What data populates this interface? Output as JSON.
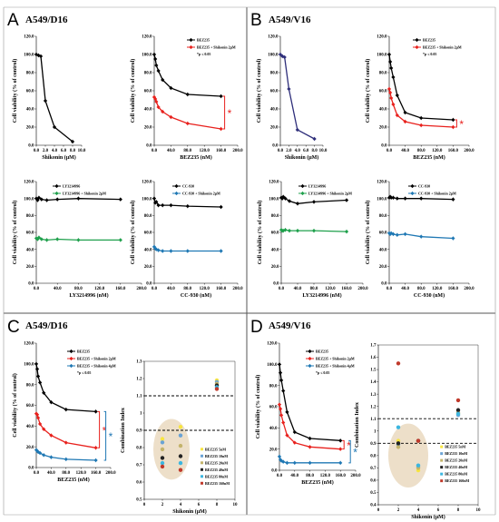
{
  "panels": [
    {
      "id": "A",
      "label": "A",
      "title": "A549/D16"
    },
    {
      "id": "B",
      "label": "B",
      "title": "A549/V16"
    },
    {
      "id": "C",
      "label": "C",
      "title": "A549/D16"
    },
    {
      "id": "D",
      "label": "D",
      "title": "A549/V16"
    }
  ],
  "chart_data": [
    {
      "id": "A1",
      "type": "line",
      "ylabel": "Cell viability (% of control)",
      "xlabel": "Shikonin (μM)",
      "xlim": [
        0,
        10
      ],
      "ylim": [
        0,
        120
      ],
      "xticks": [
        "0.0",
        "2.0",
        "4.0",
        "6.0",
        "8.0",
        "10.0"
      ],
      "yticks": [
        "0.0",
        "20.0",
        "40.0",
        "60.0",
        "80.0",
        "100.0",
        "120.0"
      ],
      "legend": [],
      "note": "",
      "series": [
        {
          "name": "",
          "color": "#000000",
          "x": [
            0,
            0.5,
            1,
            2,
            4,
            8
          ],
          "y": [
            100,
            99,
            98,
            49,
            20,
            4
          ]
        }
      ]
    },
    {
      "id": "A2",
      "type": "line",
      "ylabel": "Cell viability (% of control)",
      "xlabel": "BEZ235 (nM)",
      "xlim": [
        0,
        200
      ],
      "ylim": [
        0,
        120
      ],
      "xticks": [
        "0.0",
        "40.0",
        "80.0",
        "120.0",
        "160.0",
        "200.0"
      ],
      "yticks": [
        "0.0",
        "20.0",
        "40.0",
        "60.0",
        "80.0",
        "100.0",
        "120.0"
      ],
      "note": "*p ≤ 0.05",
      "series": [
        {
          "name": "BEZ235",
          "color": "#000000",
          "x": [
            0,
            2.5,
            5,
            10,
            20,
            40,
            80,
            160
          ],
          "y": [
            100,
            95,
            88,
            82,
            72,
            63,
            56,
            54
          ]
        },
        {
          "name": "BEZ235 + Shikonin 2μM",
          "color": "#e8211d",
          "x": [
            0,
            2.5,
            5,
            10,
            20,
            40,
            80,
            160
          ],
          "y": [
            53,
            51,
            48,
            42,
            37,
            31,
            24,
            18
          ]
        }
      ],
      "brackets": [
        {
          "y1": 54,
          "y2": 18,
          "color": "#e8211d",
          "label": "*"
        }
      ]
    },
    {
      "id": "B1",
      "type": "line",
      "ylabel": "Cell viability (% of control)",
      "xlabel": "Shikonin (μM)",
      "xlim": [
        0,
        10
      ],
      "ylim": [
        0,
        120
      ],
      "xticks": [
        "0.0",
        "2.0",
        "4.0",
        "6.0",
        "8.0",
        "10.0"
      ],
      "yticks": [
        "0.0",
        "20.0",
        "40.0",
        "60.0",
        "80.0",
        "100.0",
        "120.0"
      ],
      "legend": [],
      "note": "",
      "series": [
        {
          "name": "",
          "color": "#2e2e7a",
          "x": [
            0,
            0.5,
            1,
            2,
            4,
            8
          ],
          "y": [
            100,
            98,
            97,
            62,
            17,
            7
          ]
        }
      ]
    },
    {
      "id": "B2",
      "type": "line",
      "ylabel": "Cell viability (% of control)",
      "xlabel": "BEZ235 (nM)",
      "xlim": [
        0,
        200
      ],
      "ylim": [
        0,
        120
      ],
      "xticks": [
        "0.0",
        "40.0",
        "80.0",
        "120.0",
        "160.0",
        "200.0"
      ],
      "yticks": [
        "0.0",
        "20.0",
        "40.0",
        "60.0",
        "80.0",
        "100.0",
        "120.0"
      ],
      "note": "*p ≤ 0.05",
      "series": [
        {
          "name": "BEZ235",
          "color": "#000000",
          "x": [
            0,
            2.5,
            5,
            10,
            20,
            40,
            80,
            160
          ],
          "y": [
            100,
            92,
            85,
            75,
            55,
            36,
            30,
            28
          ]
        },
        {
          "name": "BEZ235 + Shikonin 2μM",
          "color": "#e8211d",
          "x": [
            0,
            2.5,
            5,
            10,
            20,
            40,
            80,
            160
          ],
          "y": [
            62,
            58,
            52,
            45,
            33,
            26,
            22,
            20
          ]
        }
      ],
      "brackets": [
        {
          "y1": 28,
          "y2": 20,
          "color": "#e8211d",
          "label": "*"
        }
      ]
    },
    {
      "id": "A3",
      "type": "line",
      "ylabel": "Cell viability (% of control)",
      "xlabel": "LY3214996 (nM)",
      "xlim": [
        0,
        200
      ],
      "ylim": [
        0,
        120
      ],
      "xticks": [
        "0.0",
        "40.0",
        "80.0",
        "120.0",
        "160.0",
        "200.0"
      ],
      "yticks": [
        "0.0",
        "20.0",
        "40.0",
        "60.0",
        "80.0",
        "100.0",
        "120.0"
      ],
      "note": "",
      "series": [
        {
          "name": "LY3214996",
          "color": "#000000",
          "x": [
            0,
            2.5,
            5,
            10,
            20,
            40,
            80,
            160
          ],
          "y": [
            100,
            98,
            101,
            99,
            98,
            99,
            100,
            99
          ]
        },
        {
          "name": "LY3214996 + Shikonin 2μM",
          "color": "#1fa04c",
          "x": [
            0,
            2.5,
            5,
            10,
            20,
            40,
            80,
            160
          ],
          "y": [
            53,
            52,
            54,
            52,
            51,
            52,
            51,
            51
          ]
        }
      ]
    },
    {
      "id": "A4",
      "type": "line",
      "ylabel": "Cell viability (% of control)",
      "xlabel": "CC-930 (nM)",
      "xlim": [
        0,
        200
      ],
      "ylim": [
        0,
        120
      ],
      "xticks": [
        "0.0",
        "40.0",
        "80.0",
        "120.0",
        "160.0",
        "200.0"
      ],
      "yticks": [
        "0.0",
        "20.0",
        "40.0",
        "60.0",
        "80.0",
        "100.0",
        "120.0"
      ],
      "note": "",
      "series": [
        {
          "name": "CC-930",
          "color": "#000000",
          "x": [
            0,
            2.5,
            5,
            10,
            20,
            40,
            80,
            160
          ],
          "y": [
            100,
            95,
            96,
            92,
            92,
            92,
            91,
            90
          ]
        },
        {
          "name": "CC-930 + Shikonin 2μM",
          "color": "#1f78b4",
          "x": [
            0,
            2.5,
            5,
            10,
            20,
            40,
            80,
            160
          ],
          "y": [
            43,
            41,
            40,
            39,
            38,
            38,
            38,
            38
          ]
        }
      ]
    },
    {
      "id": "B3",
      "type": "line",
      "ylabel": "Cell viability (% of control)",
      "xlabel": "LY3214996 (nM)",
      "xlim": [
        0,
        200
      ],
      "ylim": [
        0,
        120
      ],
      "xticks": [
        "0.0",
        "40.0",
        "80.0",
        "120.0",
        "160.0",
        "200.0"
      ],
      "yticks": [
        "0.0",
        "20.0",
        "40.0",
        "60.0",
        "80.0",
        "100.0",
        "120.0"
      ],
      "note": "",
      "series": [
        {
          "name": "LY3214996",
          "color": "#000000",
          "x": [
            0,
            2.5,
            5,
            10,
            20,
            40,
            80,
            160
          ],
          "y": [
            101,
            100,
            102,
            100,
            97,
            94,
            96,
            98
          ]
        },
        {
          "name": "LY3214996 + Shikonin 2μM",
          "color": "#1fa04c",
          "x": [
            0,
            2.5,
            5,
            10,
            20,
            40,
            80,
            160
          ],
          "y": [
            63,
            62,
            62,
            63,
            62,
            62,
            62,
            61
          ]
        }
      ]
    },
    {
      "id": "B4",
      "type": "line",
      "ylabel": "Cell viability (% of control)",
      "xlabel": "CC-930 (nM)",
      "xlim": [
        0,
        200
      ],
      "ylim": [
        0,
        120
      ],
      "xticks": [
        "0.0",
        "40.0",
        "80.0",
        "120.0",
        "160.0",
        "200.0"
      ],
      "yticks": [
        "0.0",
        "20.0",
        "40.0",
        "60.0",
        "80.0",
        "100.0",
        "120.0"
      ],
      "note": "",
      "series": [
        {
          "name": "CC-930",
          "color": "#000000",
          "x": [
            0,
            2.5,
            5,
            10,
            20,
            40,
            80,
            160
          ],
          "y": [
            101,
            102,
            101,
            101,
            100,
            100,
            100,
            99
          ]
        },
        {
          "name": "CC-930 + Shikonin 2μM",
          "color": "#1f78b4",
          "x": [
            0,
            2.5,
            5,
            10,
            20,
            40,
            80,
            160
          ],
          "y": [
            59,
            58,
            59,
            58,
            57,
            58,
            55,
            53
          ]
        }
      ]
    },
    {
      "id": "C1",
      "type": "line",
      "ylabel": "Cell viability (% of control)",
      "xlabel": "BEZ235 (nM)",
      "xlim": [
        0,
        200
      ],
      "ylim": [
        0,
        120
      ],
      "xticks": [
        "0.0",
        "40.0",
        "80.0",
        "120.0",
        "160.0",
        "200.0"
      ],
      "yticks": [
        "0.0",
        "20.0",
        "40.0",
        "60.0",
        "80.0",
        "100.0",
        "120.0"
      ],
      "note": "*p ≤ 0.05",
      "series": [
        {
          "name": "BEZ235",
          "color": "#000000",
          "x": [
            0,
            2.5,
            5,
            10,
            20,
            40,
            80,
            160
          ],
          "y": [
            100,
            95,
            88,
            82,
            72,
            63,
            56,
            54
          ]
        },
        {
          "name": "BEZ235 + Shikonin 2μM",
          "color": "#e8211d",
          "x": [
            0,
            2.5,
            5,
            10,
            20,
            40,
            80,
            160
          ],
          "y": [
            52,
            51,
            48,
            42,
            37,
            31,
            24,
            19
          ]
        },
        {
          "name": "BEZ235 + Shikonin 4μM",
          "color": "#1f78b4",
          "x": [
            0,
            2.5,
            5,
            10,
            20,
            40,
            80,
            160
          ],
          "y": [
            17,
            16,
            15,
            14,
            12,
            10,
            8,
            7
          ]
        }
      ],
      "brackets": [
        {
          "y1": 54,
          "y2": 19,
          "color": "#e8211d",
          "label": "*"
        },
        {
          "y1": 54,
          "y2": 7,
          "color": "#1f78b4",
          "label": "*",
          "outer": true
        }
      ]
    },
    {
      "id": "C2",
      "type": "scatter",
      "ylabel": "Combination Index",
      "xlabel": "Shikonin (μM)",
      "xlim": [
        0,
        10
      ],
      "ylim": [
        0.5,
        1.3
      ],
      "xticks": [
        "0",
        "2",
        "4",
        "6",
        "8",
        "10"
      ],
      "yticks": [
        "0.5",
        "0.6",
        "0.7",
        "0.8",
        "0.9",
        "1",
        "1.1",
        "1.2",
        "1.3"
      ],
      "hlines": [
        1.1,
        0.9
      ],
      "legend_items": [
        "BEZ235 5nM",
        "BEZ235 10nM",
        "BEZ235 20nM",
        "BEZ235 40nM",
        "BEZ235 80nM",
        "BEZ235 160nM"
      ],
      "colors": [
        "#f7e541",
        "#6aa3d5",
        "#c4b46b",
        "#222222",
        "#3bb6e0",
        "#c0392b"
      ],
      "points": [
        {
          "x": 2,
          "y": 0.85,
          "s": 0
        },
        {
          "x": 2,
          "y": 0.83,
          "s": 1
        },
        {
          "x": 2,
          "y": 0.79,
          "s": 2
        },
        {
          "x": 2,
          "y": 0.74,
          "s": 3
        },
        {
          "x": 2,
          "y": 0.71,
          "s": 4
        },
        {
          "x": 2,
          "y": 0.69,
          "s": 5
        },
        {
          "x": 4,
          "y": 0.92,
          "s": 0
        },
        {
          "x": 4,
          "y": 0.87,
          "s": 1
        },
        {
          "x": 4,
          "y": 0.81,
          "s": 2
        },
        {
          "x": 4,
          "y": 0.75,
          "s": 3
        },
        {
          "x": 4,
          "y": 0.71,
          "s": 4
        },
        {
          "x": 4,
          "y": 0.67,
          "s": 5
        },
        {
          "x": 8,
          "y": 1.19,
          "s": 0
        },
        {
          "x": 8,
          "y": 1.18,
          "s": 1
        },
        {
          "x": 8,
          "y": 1.17,
          "s": 2
        },
        {
          "x": 8,
          "y": 1.16,
          "s": 3
        },
        {
          "x": 8,
          "y": 1.15,
          "s": 4
        },
        {
          "x": 8,
          "y": 1.14,
          "s": 5
        }
      ]
    },
    {
      "id": "D1",
      "type": "line",
      "ylabel": "Cell viability (% of control)",
      "xlabel": "BEZ235 (nM)",
      "xlim": [
        0,
        200
      ],
      "ylim": [
        0,
        120
      ],
      "xticks": [
        "0.0",
        "40.0",
        "80.0",
        "120.0",
        "160.0",
        "200.0"
      ],
      "yticks": [
        "0.0",
        "20.0",
        "40.0",
        "60.0",
        "80.0",
        "100.0",
        "120.0"
      ],
      "note": "*p ≤ 0.05",
      "series": [
        {
          "name": "BEZ235",
          "color": "#000000",
          "x": [
            0,
            2.5,
            5,
            10,
            20,
            40,
            80,
            160
          ],
          "y": [
            100,
            92,
            85,
            75,
            55,
            36,
            30,
            28
          ]
        },
        {
          "name": "BEZ235 + Shikonin 2μM",
          "color": "#e8211d",
          "x": [
            0,
            2.5,
            5,
            10,
            20,
            40,
            80,
            160
          ],
          "y": [
            62,
            58,
            52,
            45,
            33,
            26,
            22,
            20
          ]
        },
        {
          "name": "BEZ235 + Shikonin 4μM",
          "color": "#1f78b4",
          "x": [
            0,
            2.5,
            5,
            10,
            20,
            40,
            80,
            160
          ],
          "y": [
            13,
            10,
            9,
            8,
            7,
            7,
            7,
            7
          ]
        }
      ],
      "brackets": [
        {
          "y1": 28,
          "y2": 20,
          "color": "#e8211d",
          "label": "*"
        },
        {
          "y1": 28,
          "y2": 7,
          "color": "#1f78b4",
          "label": "*",
          "outer": true
        }
      ]
    },
    {
      "id": "D2",
      "type": "scatter",
      "ylabel": "Combination Index",
      "xlabel": "Shikonin (μM)",
      "xlim": [
        0,
        10
      ],
      "ylim": [
        0.4,
        1.7
      ],
      "xticks": [
        "0",
        "2",
        "4",
        "6",
        "8",
        "10"
      ],
      "yticks": [
        "0.4",
        "0.5",
        "0.6",
        "0.7",
        "0.8",
        "0.9",
        "1",
        "1.1",
        "1.2",
        "1.3",
        "1.4",
        "1.5",
        "1.6",
        "1.7"
      ],
      "hlines": [
        1.1,
        0.9
      ],
      "legend_items": [
        "BEZ235 5nM",
        "BEZ235 10nM",
        "BEZ235 20nM",
        "BEZ235 40nM",
        "BEZ235 80nM",
        "BEZ235 160nM"
      ],
      "colors": [
        "#f7e541",
        "#6aa3d5",
        "#c4b46b",
        "#222222",
        "#3bb6e0",
        "#c0392b"
      ],
      "points": [
        {
          "x": 2,
          "y": 0.92,
          "s": 0
        },
        {
          "x": 2,
          "y": 0.89,
          "s": 1
        },
        {
          "x": 2,
          "y": 0.87,
          "s": 2
        },
        {
          "x": 2,
          "y": 0.9,
          "s": 3
        },
        {
          "x": 2,
          "y": 1.03,
          "s": 4
        },
        {
          "x": 2,
          "y": 1.55,
          "s": 5
        },
        {
          "x": 4,
          "y": 0.68,
          "s": 0
        },
        {
          "x": 4,
          "y": 0.71,
          "s": 1
        },
        {
          "x": 4,
          "y": 0.7,
          "s": 2
        },
        {
          "x": 4,
          "y": 0.92,
          "s": 3
        },
        {
          "x": 4,
          "y": 0.72,
          "s": 4
        },
        {
          "x": 4,
          "y": 0.92,
          "s": 5
        },
        {
          "x": 8,
          "y": 1.14,
          "s": 0
        },
        {
          "x": 8,
          "y": 1.13,
          "s": 1
        },
        {
          "x": 8,
          "y": 1.15,
          "s": 2
        },
        {
          "x": 8,
          "y": 1.17,
          "s": 3
        },
        {
          "x": 8,
          "y": 1.14,
          "s": 4
        },
        {
          "x": 8,
          "y": 1.25,
          "s": 5
        }
      ]
    }
  ]
}
